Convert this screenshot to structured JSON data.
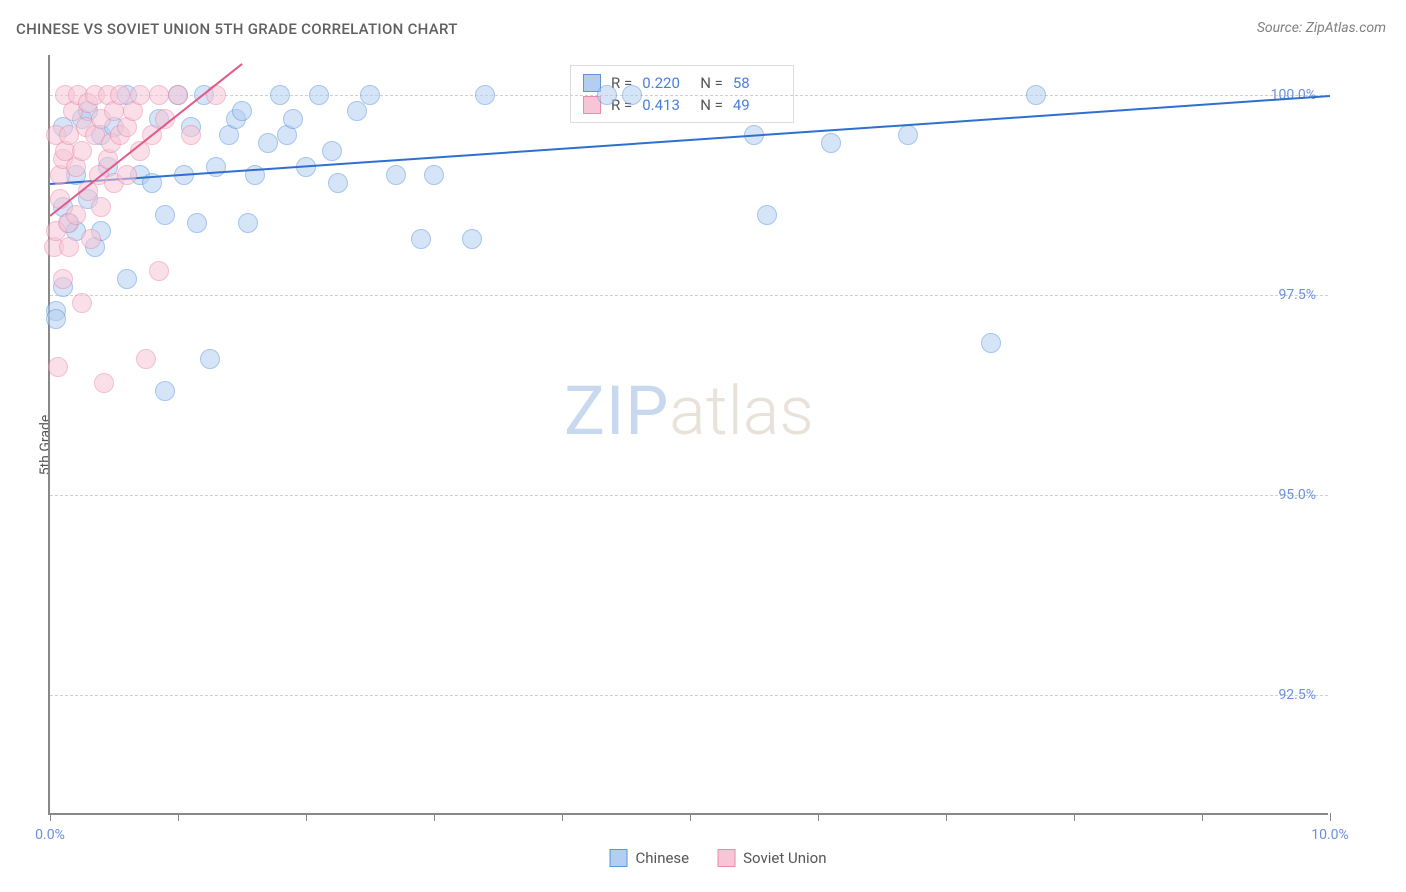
{
  "title": "CHINESE VS SOVIET UNION 5TH GRADE CORRELATION CHART",
  "source": "Source: ZipAtlas.com",
  "y_axis_label": "5th Grade",
  "watermark": {
    "part1": "ZIP",
    "part2": "atlas"
  },
  "chart": {
    "type": "scatter",
    "xlim": [
      0,
      10
    ],
    "ylim": [
      91,
      100.5
    ],
    "x_ticks": [
      0,
      1,
      2,
      3,
      4,
      5,
      6,
      7,
      8,
      9,
      10
    ],
    "x_tick_labels": {
      "0": "0.0%",
      "10": "10.0%"
    },
    "y_ticks": [
      92.5,
      95.0,
      97.5,
      100.0
    ],
    "y_tick_labels": [
      "92.5%",
      "95.0%",
      "97.5%",
      "100.0%"
    ],
    "background_color": "#ffffff",
    "grid_color": "#d0d0d0",
    "axis_color": "#888888",
    "tick_label_color": "#6b8fd9",
    "point_radius": 10,
    "point_opacity": 0.55,
    "series": [
      {
        "name": "Chinese",
        "fill": "#b3cef0",
        "stroke": "#5e96db",
        "trend_color": "#2f6fd0",
        "trend": {
          "x1": 0,
          "y1": 98.9,
          "x2": 10,
          "y2": 100.0
        },
        "points": [
          [
            0.05,
            97.3
          ],
          [
            0.05,
            97.2
          ],
          [
            0.1,
            97.6
          ],
          [
            0.1,
            98.6
          ],
          [
            0.1,
            99.6
          ],
          [
            0.15,
            98.4
          ],
          [
            0.2,
            99.0
          ],
          [
            0.2,
            98.3
          ],
          [
            0.25,
            99.7
          ],
          [
            0.3,
            99.8
          ],
          [
            0.3,
            98.7
          ],
          [
            0.35,
            98.1
          ],
          [
            0.4,
            99.5
          ],
          [
            0.4,
            98.3
          ],
          [
            0.45,
            99.1
          ],
          [
            0.5,
            99.6
          ],
          [
            0.6,
            97.7
          ],
          [
            0.6,
            100.0
          ],
          [
            0.7,
            99.0
          ],
          [
            0.8,
            98.9
          ],
          [
            0.85,
            99.7
          ],
          [
            0.9,
            98.5
          ],
          [
            0.9,
            96.3
          ],
          [
            1.0,
            100.0
          ],
          [
            1.05,
            99.0
          ],
          [
            1.1,
            99.6
          ],
          [
            1.15,
            98.4
          ],
          [
            1.2,
            100.0
          ],
          [
            1.25,
            96.7
          ],
          [
            1.3,
            99.1
          ],
          [
            1.4,
            99.5
          ],
          [
            1.45,
            99.7
          ],
          [
            1.5,
            99.8
          ],
          [
            1.55,
            98.4
          ],
          [
            1.6,
            99.0
          ],
          [
            1.7,
            99.4
          ],
          [
            1.8,
            100.0
          ],
          [
            1.85,
            99.5
          ],
          [
            1.9,
            99.7
          ],
          [
            2.0,
            99.1
          ],
          [
            2.1,
            100.0
          ],
          [
            2.2,
            99.3
          ],
          [
            2.25,
            98.9
          ],
          [
            2.4,
            99.8
          ],
          [
            2.5,
            100.0
          ],
          [
            2.7,
            99.0
          ],
          [
            2.9,
            98.2
          ],
          [
            3.0,
            99.0
          ],
          [
            3.3,
            98.2
          ],
          [
            3.4,
            100.0
          ],
          [
            4.35,
            100.0
          ],
          [
            4.55,
            100.0
          ],
          [
            5.5,
            99.5
          ],
          [
            5.6,
            98.5
          ],
          [
            6.1,
            99.4
          ],
          [
            6.7,
            99.5
          ],
          [
            7.35,
            96.9
          ],
          [
            7.7,
            100.0
          ]
        ]
      },
      {
        "name": "Soviet Union",
        "fill": "#f6c6d6",
        "stroke": "#e98bac",
        "trend_color": "#e05a8a",
        "trend": {
          "x1": 0,
          "y1": 98.5,
          "x2": 1.5,
          "y2": 100.4
        },
        "points": [
          [
            0.03,
            98.1
          ],
          [
            0.05,
            98.3
          ],
          [
            0.05,
            99.5
          ],
          [
            0.06,
            96.6
          ],
          [
            0.08,
            99.0
          ],
          [
            0.08,
            98.7
          ],
          [
            0.1,
            97.7
          ],
          [
            0.1,
            99.2
          ],
          [
            0.12,
            100.0
          ],
          [
            0.12,
            99.3
          ],
          [
            0.14,
            98.4
          ],
          [
            0.15,
            99.5
          ],
          [
            0.15,
            98.1
          ],
          [
            0.18,
            99.8
          ],
          [
            0.2,
            99.1
          ],
          [
            0.2,
            98.5
          ],
          [
            0.22,
            100.0
          ],
          [
            0.25,
            97.4
          ],
          [
            0.25,
            99.3
          ],
          [
            0.28,
            99.6
          ],
          [
            0.3,
            98.8
          ],
          [
            0.3,
            99.9
          ],
          [
            0.32,
            98.2
          ],
          [
            0.35,
            99.5
          ],
          [
            0.35,
            100.0
          ],
          [
            0.38,
            99.0
          ],
          [
            0.4,
            99.7
          ],
          [
            0.4,
            98.6
          ],
          [
            0.42,
            96.4
          ],
          [
            0.45,
            99.2
          ],
          [
            0.45,
            100.0
          ],
          [
            0.48,
            99.4
          ],
          [
            0.5,
            98.9
          ],
          [
            0.5,
            99.8
          ],
          [
            0.55,
            99.5
          ],
          [
            0.55,
            100.0
          ],
          [
            0.6,
            99.0
          ],
          [
            0.6,
            99.6
          ],
          [
            0.65,
            99.8
          ],
          [
            0.7,
            99.3
          ],
          [
            0.7,
            100.0
          ],
          [
            0.75,
            96.7
          ],
          [
            0.8,
            99.5
          ],
          [
            0.85,
            100.0
          ],
          [
            0.85,
            97.8
          ],
          [
            0.9,
            99.7
          ],
          [
            1.0,
            100.0
          ],
          [
            1.1,
            99.5
          ],
          [
            1.3,
            100.0
          ]
        ]
      }
    ]
  },
  "stats": [
    {
      "r_label": "R =",
      "r": "0.220",
      "n_label": "N =",
      "n": "58",
      "swatch_fill": "#b3cef0",
      "swatch_stroke": "#5e96db"
    },
    {
      "r_label": "R =",
      "r": "0.413",
      "n_label": "N =",
      "n": "49",
      "swatch_fill": "#f6c6d6",
      "swatch_stroke": "#e98bac"
    }
  ],
  "legend": [
    {
      "label": "Chinese",
      "fill": "#b3cef0",
      "stroke": "#5e96db"
    },
    {
      "label": "Soviet Union",
      "fill": "#f6c6d6",
      "stroke": "#e98bac"
    }
  ]
}
